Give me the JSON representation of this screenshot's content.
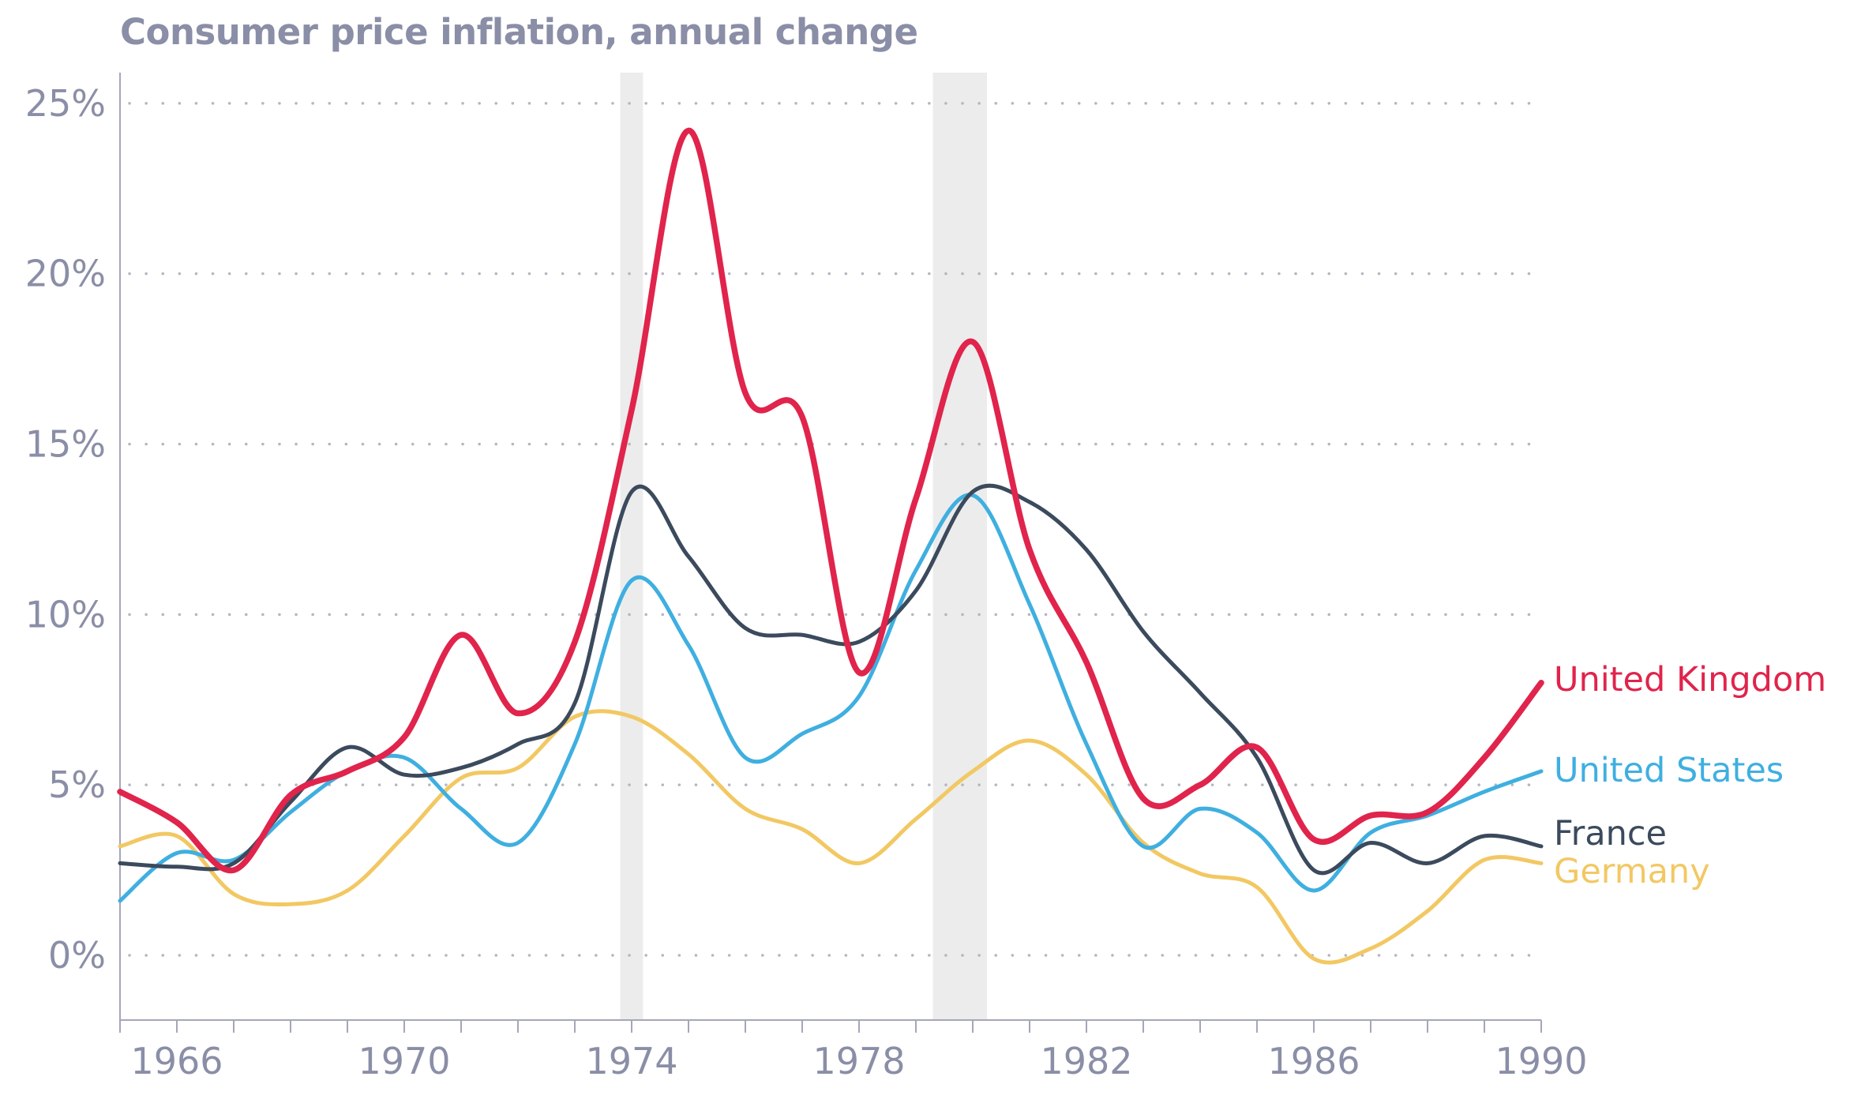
{
  "chart_data": {
    "type": "line",
    "title": "Consumer price inflation, annual change",
    "xlabel": "",
    "ylabel": "",
    "xlim": [
      1965,
      1990
    ],
    "ylim": [
      -1.9,
      25.9
    ],
    "grid": true,
    "y_ticks": [
      0,
      5,
      10,
      15,
      20,
      25
    ],
    "y_tick_labels": [
      "0%",
      "5%",
      "10%",
      "15%",
      "20%",
      "25%"
    ],
    "x_ticks": [
      1966,
      1970,
      1974,
      1978,
      1982,
      1986,
      1990
    ],
    "x_tick_labels": [
      "1966",
      "1970",
      "1974",
      "1978",
      "1982",
      "1986",
      "1990"
    ],
    "shaded_periods": [
      [
        1973.8,
        1974.2
      ],
      [
        1979.3,
        1980.25
      ]
    ],
    "x": [
      1965,
      1966,
      1967,
      1968,
      1969,
      1970,
      1971,
      1972,
      1973,
      1974,
      1975,
      1976,
      1977,
      1978,
      1979,
      1980,
      1981,
      1982,
      1983,
      1984,
      1985,
      1986,
      1987,
      1988,
      1989,
      1990
    ],
    "series": [
      {
        "name": "United Kingdom",
        "color": "#e0244c",
        "values": [
          4.8,
          3.9,
          2.5,
          4.7,
          5.4,
          6.4,
          9.4,
          7.1,
          9.2,
          16.0,
          24.2,
          16.5,
          15.8,
          8.3,
          13.4,
          18.0,
          11.9,
          8.6,
          4.6,
          5.0,
          6.1,
          3.4,
          4.1,
          4.2,
          5.8,
          8.0
        ]
      },
      {
        "name": "United States",
        "color": "#3fafe0",
        "values": [
          1.6,
          3.0,
          2.8,
          4.2,
          5.4,
          5.8,
          4.3,
          3.3,
          6.2,
          11.0,
          9.1,
          5.8,
          6.5,
          7.6,
          11.3,
          13.5,
          10.3,
          6.2,
          3.2,
          4.3,
          3.6,
          1.9,
          3.6,
          4.1,
          4.8,
          5.4
        ]
      },
      {
        "name": "France",
        "color": "#3b4a5c",
        "values": [
          2.7,
          2.6,
          2.7,
          4.5,
          6.1,
          5.3,
          5.5,
          6.2,
          7.4,
          13.6,
          11.7,
          9.6,
          9.4,
          9.2,
          10.7,
          13.6,
          13.3,
          11.9,
          9.5,
          7.7,
          5.8,
          2.5,
          3.3,
          2.7,
          3.5,
          3.2
        ]
      },
      {
        "name": "Germany",
        "color": "#f2c863",
        "values": [
          3.2,
          3.5,
          1.8,
          1.5,
          1.9,
          3.5,
          5.2,
          5.5,
          7.0,
          7.0,
          5.9,
          4.3,
          3.7,
          2.7,
          4.0,
          5.4,
          6.3,
          5.3,
          3.3,
          2.4,
          2.0,
          -0.1,
          0.2,
          1.3,
          2.8,
          2.7
        ]
      }
    ]
  }
}
